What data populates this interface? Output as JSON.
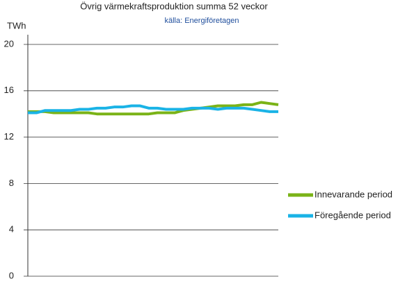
{
  "chart_data": {
    "type": "line",
    "title": "Övrig värmekraftsproduktion summa 52 veckor",
    "subtitle": "källa: Energiföretagen",
    "y_label": "TWh",
    "categories": [
      null,
      null,
      null,
      null,
      null,
      null,
      null,
      null,
      null,
      null,
      null,
      null,
      null,
      null,
      null,
      null,
      null,
      null,
      null,
      null,
      null,
      null,
      null,
      null,
      null,
      null,
      null,
      null,
      null,
      null
    ],
    "series": [
      {
        "name": "Innevarande period",
        "color": "#7ab317",
        "values": [
          14.2,
          14.2,
          14.2,
          14.1,
          14.1,
          14.1,
          14.1,
          14.1,
          14.0,
          14.0,
          14.0,
          14.0,
          14.0,
          14.0,
          14.0,
          14.1,
          14.1,
          14.1,
          14.3,
          14.4,
          14.5,
          14.6,
          14.7,
          14.7,
          14.7,
          14.8,
          14.8,
          15.0,
          14.9,
          14.8
        ]
      },
      {
        "name": "Föregående period",
        "color": "#1ab3e6",
        "values": [
          14.1,
          14.1,
          14.3,
          14.3,
          14.3,
          14.3,
          14.4,
          14.4,
          14.5,
          14.5,
          14.6,
          14.6,
          14.7,
          14.7,
          14.5,
          14.5,
          14.4,
          14.4,
          14.4,
          14.5,
          14.5,
          14.5,
          14.4,
          14.5,
          14.5,
          14.5,
          14.4,
          14.3,
          14.2,
          14.2
        ]
      }
    ],
    "ylim": [
      0,
      20
    ],
    "yticks": [
      0,
      4,
      8,
      12,
      16,
      20
    ],
    "grid": true,
    "legend": "right"
  }
}
